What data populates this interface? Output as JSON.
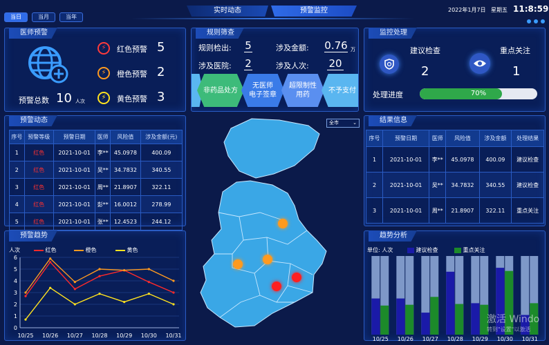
{
  "header": {
    "date_tabs": [
      "当日",
      "当月",
      "当年"
    ],
    "active_date_tab": 0,
    "center_tabs": [
      "实时动态",
      "预警监控"
    ],
    "active_center_tab": 1,
    "date": "2022年1月7日",
    "weekday": "星期五",
    "time": "11:8:59"
  },
  "doctor_alert": {
    "title": "医师预警",
    "total_label": "预警总数",
    "total_value": "10",
    "total_unit": "人次",
    "items": [
      {
        "label": "红色预警",
        "value": "5",
        "color": "#ff3b3b"
      },
      {
        "label": "橙色预警",
        "value": "2",
        "color": "#ff9a1f"
      },
      {
        "label": "黄色预警",
        "value": "3",
        "color": "#ffe21f"
      }
    ]
  },
  "rule_screening": {
    "title": "规则筛查",
    "detected_label": "规则检出:",
    "detected_value": "5",
    "amount_label": "涉及金额:",
    "amount_value": "0.76",
    "amount_unit": "万",
    "hospitals_label": "涉及医院:",
    "hospitals_value": "2",
    "persons_label": "涉及人次:",
    "persons_value": "20",
    "hex_items": [
      {
        "line1": "非药品处方",
        "line2": "",
        "color": "#3dbb7a"
      },
      {
        "line1": "无医师",
        "line2": "电子签章",
        "color": "#3a7be8"
      },
      {
        "line1": "超限制性",
        "line2": "用药",
        "color": "#5a8ff0"
      },
      {
        "line1": "不予支付",
        "line2": "",
        "color": "#5ab6f0"
      }
    ]
  },
  "monitor_process": {
    "title": "监控处理",
    "suggest_label": "建议检查",
    "suggest_value": "2",
    "focus_label": "重点关注",
    "focus_value": "1",
    "progress_label": "处理进度",
    "progress_value": 0.7,
    "progress_text": "70%"
  },
  "alert_dynamic": {
    "title": "预警动态",
    "columns": [
      "序号",
      "预警等级",
      "预警日期",
      "医师",
      "风险值",
      "涉及金额(元)"
    ],
    "rows": [
      [
        "1",
        "红色",
        "2021-10-01",
        "李**",
        "45.0978",
        "400.09"
      ],
      [
        "2",
        "红色",
        "2021-10-01",
        "吴**",
        "34.7832",
        "340.55"
      ],
      [
        "3",
        "红色",
        "2021-10-01",
        "周**",
        "21.8907",
        "322.11"
      ],
      [
        "4",
        "红色",
        "2021-10-01",
        "彭**",
        "16.0012",
        "278.99"
      ],
      [
        "5",
        "红色",
        "2021-10-01",
        "张**",
        "12.4523",
        "244.12"
      ]
    ]
  },
  "map": {
    "select_value": "全市",
    "markers": [
      {
        "color": "#ff9a1f"
      },
      {
        "color": "#ff9a1f"
      },
      {
        "color": "#ff9a1f"
      },
      {
        "color": "#ff2020"
      },
      {
        "color": "#ff2020"
      }
    ]
  },
  "result_info": {
    "title": "结果信息",
    "columns": [
      "序号",
      "预警日期",
      "医师",
      "风险值",
      "涉及金额",
      "处理结果"
    ],
    "rows": [
      [
        "1",
        "2021-10-01",
        "李**",
        "45.0978",
        "400.09",
        "建议检查"
      ],
      [
        "2",
        "2021-10-01",
        "吴**",
        "34.7832",
        "340.55",
        "建议检查"
      ],
      [
        "3",
        "2021-10-01",
        "周**",
        "21.8907",
        "322.11",
        "重点关注"
      ]
    ]
  },
  "alert_trend": {
    "title": "预警趋势",
    "chart_data": {
      "type": "line",
      "ylabel": "人次",
      "x": [
        "10/25",
        "10/26",
        "10/27",
        "10/28",
        "10/29",
        "10/30",
        "10/31"
      ],
      "ylim": [
        0,
        6
      ],
      "yticks": [
        0,
        1,
        2,
        3,
        4,
        5,
        6
      ],
      "series": [
        {
          "name": "红色",
          "color": "#ff2a2a",
          "values": [
            2.7,
            5.6,
            3.3,
            4.4,
            4.9,
            3.9,
            3.0
          ]
        },
        {
          "name": "橙色",
          "color": "#ff9a1f",
          "values": [
            3.0,
            5.9,
            3.9,
            5.0,
            4.9,
            5.0,
            4.0
          ]
        },
        {
          "name": "黄色",
          "color": "#ffe21f",
          "values": [
            0.7,
            3.4,
            2.0,
            2.9,
            2.2,
            2.9,
            2.0
          ]
        }
      ]
    }
  },
  "trend_analysis": {
    "title": "趋势分析",
    "chart_data": {
      "type": "bar",
      "ylabel": "单位: 人次",
      "x": [
        "10/25",
        "10/26",
        "10/27",
        "10/28",
        "10/29",
        "10/30",
        "10/31"
      ],
      "ylim": [
        0,
        10
      ],
      "series": [
        {
          "name": "建议检查",
          "color": "#1a1aa8",
          "values": [
            4.6,
            4.6,
            2.8,
            8.0,
            4.0,
            8.5,
            2.5
          ]
        },
        {
          "name": "重点关注",
          "color": "#1c8a2a",
          "values": [
            3.7,
            3.8,
            4.8,
            3.9,
            3.8,
            8.1,
            4.0
          ]
        }
      ]
    }
  },
  "watermark": {
    "line1": "激活 Windo",
    "line2": "转到\"设置\"以激活"
  }
}
